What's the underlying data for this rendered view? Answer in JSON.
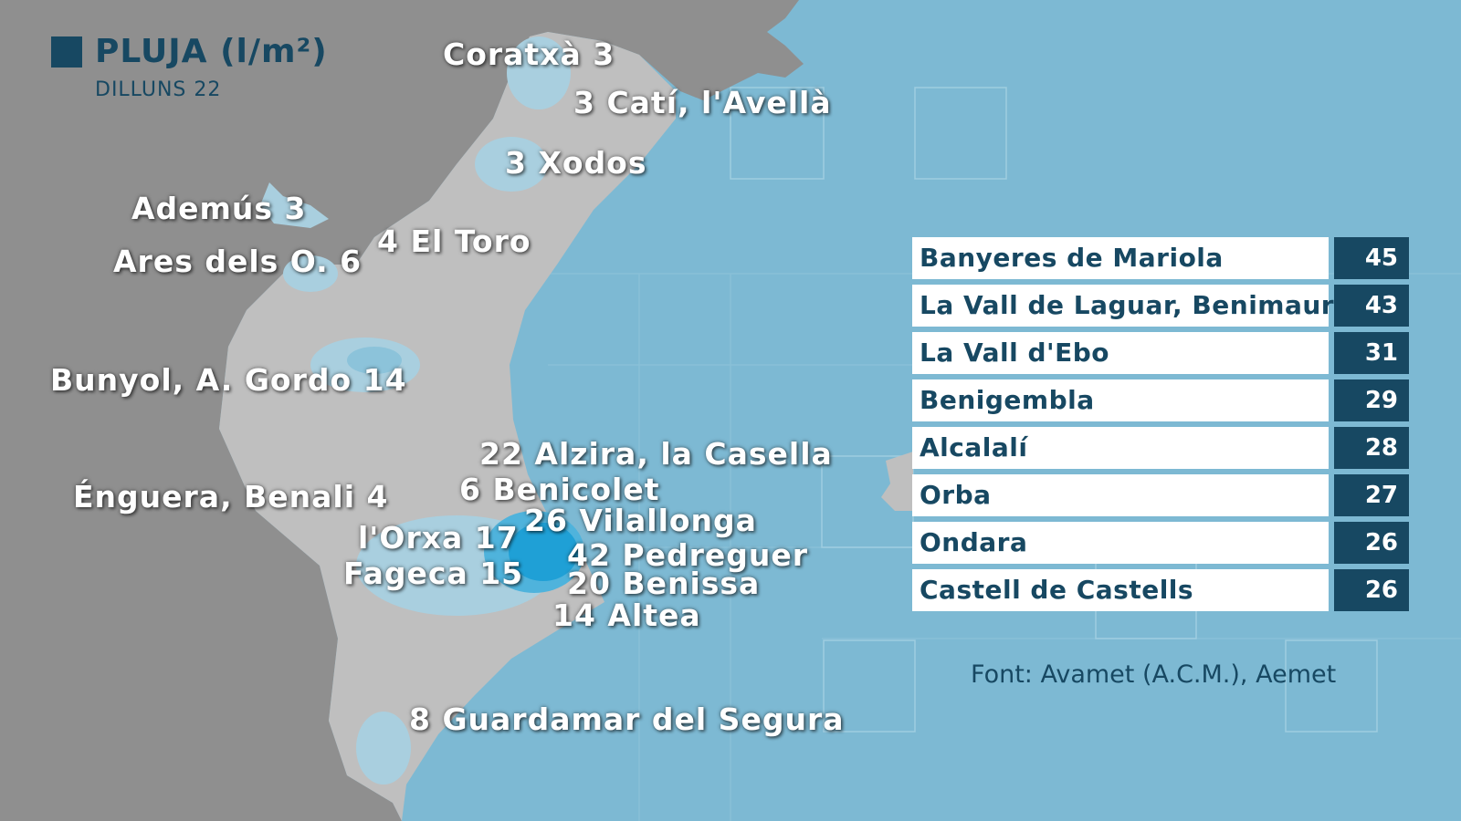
{
  "legend": {
    "title": "PLUJA (l/m²)",
    "subtitle": "DILLUNS 22",
    "color": "#174862"
  },
  "colors": {
    "sea": "#7db9d3",
    "outer_land": "#8f8f8f",
    "region_land": "#bfbfbf",
    "rain_light": "#a9cfdf",
    "rain_heavy": "#1fa0d6"
  },
  "map_labels": [
    "Coratxà 3",
    "3 Catí, l'Avellà",
    "3 Xodos",
    "Ademús 3",
    "Ares dels O. 6",
    "4 El Toro",
    "Bunyol, A. Gordo 14",
    "22 Alzira, la Casella",
    "Énguera, Benali 4",
    "6 Benicolet",
    "26 Vilallonga",
    "l'Orxa 17",
    "42 Pedreguer",
    "Fageca 15",
    "20 Benissa",
    "14 Altea",
    "8 Guardamar del Segura"
  ],
  "ranking": [
    {
      "name": "Banyeres de Mariola",
      "value": "45"
    },
    {
      "name": "La Vall de Laguar, Benimaurell",
      "value": "43"
    },
    {
      "name": "La Vall d'Ebo",
      "value": "31"
    },
    {
      "name": "Benigembla",
      "value": "29"
    },
    {
      "name": "Alcalalí",
      "value": "28"
    },
    {
      "name": "Orba",
      "value": "27"
    },
    {
      "name": "Ondara",
      "value": "26"
    },
    {
      "name": "Castell de Castells",
      "value": "26"
    }
  ],
  "source": "Font: Avamet (A.C.M.), Aemet"
}
